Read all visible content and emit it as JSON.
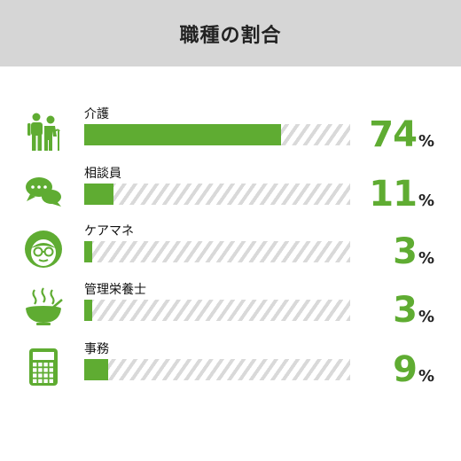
{
  "header": {
    "title": "職種の割合"
  },
  "chart_data": {
    "type": "bar",
    "orientation": "horizontal",
    "title": "職種の割合",
    "categories": [
      "介護",
      "相談員",
      "ケアマネ",
      "管理栄養士",
      "事務"
    ],
    "values": [
      74,
      11,
      3,
      3,
      9
    ],
    "unit": "%",
    "xlim": [
      0,
      100
    ],
    "icons": [
      "elderly-care-icon",
      "speech-bubbles-icon",
      "woman-with-glasses-icon",
      "steaming-bowl-icon",
      "calculator-icon"
    ],
    "colors": {
      "bar": "#5fac32",
      "track_stripe": "#d9d9d9",
      "value": "#5fac32"
    }
  }
}
